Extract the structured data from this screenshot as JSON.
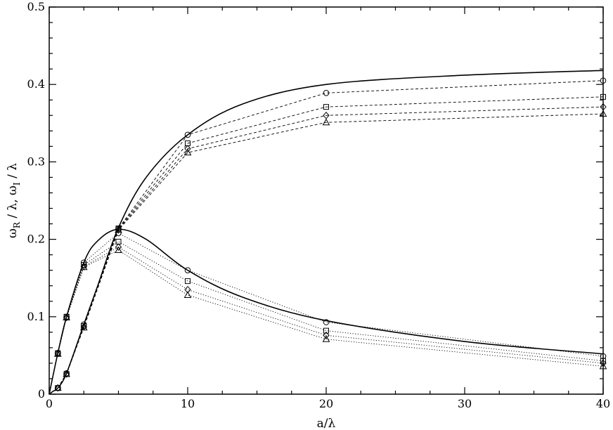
{
  "chart_data": {
    "type": "line",
    "xlabel": "a/λ",
    "ylabel": {
      "part1": "ω",
      "sub1": "R",
      "part2": " / λ,  ω",
      "sub2": "I",
      "part3": " / λ"
    },
    "xlim": [
      0,
      40
    ],
    "ylim": [
      0,
      0.5
    ],
    "x_ticks": [
      0,
      10,
      20,
      30,
      40
    ],
    "y_ticks": [
      0,
      0.1,
      0.2,
      0.3,
      0.4,
      0.5
    ],
    "x_tick_labels": [
      "0",
      "10",
      "20",
      "30",
      "40"
    ],
    "y_tick_labels": [
      "0",
      "0.1",
      "0.2",
      "0.3",
      "0.4",
      "0.5"
    ],
    "grid": false,
    "legend": "none",
    "curves": [
      {
        "style": "solid",
        "x": [
          0,
          0.3,
          0.625,
          1.25,
          2.5,
          3.5,
          5,
          7,
          10,
          14,
          20,
          30,
          40
        ],
        "y": [
          0,
          0.004,
          0.008,
          0.027,
          0.09,
          0.14,
          0.215,
          0.28,
          0.335,
          0.375,
          0.4,
          0.412,
          0.418
        ]
      },
      {
        "style": "solid",
        "x": [
          0,
          0.3,
          0.625,
          1.25,
          2.5,
          3.5,
          5,
          7,
          10,
          14,
          20,
          30,
          40
        ],
        "y": [
          0,
          0.026,
          0.053,
          0.1,
          0.17,
          0.198,
          0.213,
          0.2,
          0.16,
          0.125,
          0.095,
          0.068,
          0.052
        ]
      }
    ],
    "series": [
      {
        "marker": "circle",
        "line": "dashed",
        "x": [
          0.625,
          1.25,
          2.5,
          5,
          10,
          20,
          40
        ],
        "y": [
          0.008,
          0.027,
          0.09,
          0.214,
          0.335,
          0.389,
          0.405
        ]
      },
      {
        "marker": "square",
        "line": "dashed",
        "x": [
          0.625,
          1.25,
          2.5,
          5,
          10,
          20,
          40
        ],
        "y": [
          0.008,
          0.026,
          0.088,
          0.214,
          0.324,
          0.371,
          0.384
        ]
      },
      {
        "marker": "diamond",
        "line": "dashed",
        "x": [
          0.625,
          1.25,
          2.5,
          5,
          10,
          20,
          40
        ],
        "y": [
          0.008,
          0.026,
          0.087,
          0.213,
          0.317,
          0.36,
          0.371
        ]
      },
      {
        "marker": "triangle",
        "line": "dashed",
        "x": [
          0.625,
          1.25,
          2.5,
          5,
          10,
          20,
          40
        ],
        "y": [
          0.008,
          0.026,
          0.086,
          0.212,
          0.312,
          0.351,
          0.362
        ]
      },
      {
        "marker": "circle",
        "line": "dotted",
        "x": [
          0.625,
          1.25,
          2.5,
          5,
          10,
          20,
          40
        ],
        "y": [
          0.053,
          0.1,
          0.17,
          0.208,
          0.16,
          0.093,
          0.049
        ]
      },
      {
        "marker": "square",
        "line": "dotted",
        "x": [
          0.625,
          1.25,
          2.5,
          5,
          10,
          20,
          40
        ],
        "y": [
          0.053,
          0.1,
          0.167,
          0.197,
          0.146,
          0.082,
          0.043
        ]
      },
      {
        "marker": "diamond",
        "line": "dotted",
        "x": [
          0.625,
          1.25,
          2.5,
          5,
          10,
          20,
          40
        ],
        "y": [
          0.053,
          0.099,
          0.165,
          0.19,
          0.135,
          0.076,
          0.04
        ]
      },
      {
        "marker": "triangle",
        "line": "dotted",
        "x": [
          0.625,
          1.25,
          2.5,
          5,
          10,
          20,
          40
        ],
        "y": [
          0.052,
          0.099,
          0.164,
          0.186,
          0.128,
          0.071,
          0.036
        ]
      }
    ]
  }
}
